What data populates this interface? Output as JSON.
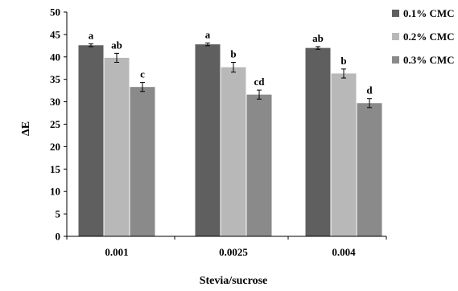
{
  "chart_data": {
    "type": "bar",
    "title": "",
    "xlabel": "Stevia/sucrose",
    "ylabel": "ΔE",
    "ylim": [
      0,
      50
    ],
    "yticks": [
      0,
      5,
      10,
      15,
      20,
      25,
      30,
      35,
      40,
      45,
      50
    ],
    "categories": [
      "0.001",
      "0.0025",
      "0.004"
    ],
    "grid": false,
    "legend_position": "top-right",
    "series": [
      {
        "name": "0.1% CMC",
        "color": "#5f5f5f",
        "values": [
          42.6,
          42.8,
          42.0
        ],
        "errors": [
          0.3,
          0.3,
          0.3
        ],
        "labels": [
          "a",
          "a",
          "ab"
        ]
      },
      {
        "name": "0.2% CMC",
        "color": "#b8b8b8",
        "values": [
          39.8,
          37.7,
          36.3
        ],
        "errors": [
          1.0,
          1.1,
          1.0
        ],
        "labels": [
          "ab",
          "b",
          "b"
        ]
      },
      {
        "name": "0.3% CMC",
        "color": "#8a8a8a",
        "values": [
          33.3,
          31.6,
          29.7
        ],
        "errors": [
          1.0,
          1.0,
          1.0
        ],
        "labels": [
          "c",
          "cd",
          "d"
        ]
      }
    ]
  }
}
